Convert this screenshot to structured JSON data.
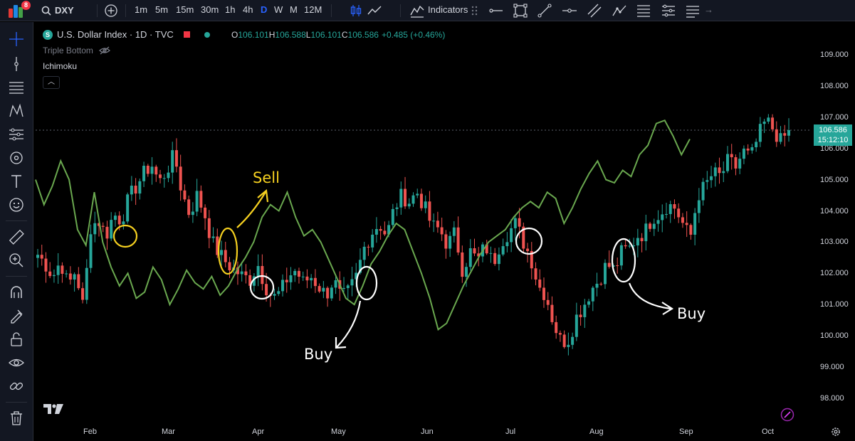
{
  "toolbar": {
    "notification_count": "8",
    "symbol": "DXY",
    "timeframes": [
      "1m",
      "5m",
      "15m",
      "30m",
      "1h",
      "4h",
      "D",
      "W",
      "M",
      "12M"
    ],
    "active_timeframe": "D",
    "indicators_label": "Indicators",
    "accent_color": "#2962ff"
  },
  "legend": {
    "symbol_badge": "S",
    "title": "U.S. Dollar Index · 1D · TVC",
    "ohlc": {
      "o_label": "O",
      "o_value": "106.101",
      "h_label": "H",
      "h_value": "106.588",
      "l_label": "L",
      "l_value": "106.101",
      "c_label": "C",
      "c_value": "106.586",
      "change": "+0.485 (+0.46%)"
    },
    "indicator_1": "Triple Bottom",
    "indicator_2": "Ichimoku",
    "collapse_icon": "chevron-up-icon"
  },
  "price_tag": {
    "price": "106.586",
    "countdown": "15:12:10",
    "color": "#26a69a"
  },
  "annotations": {
    "sell_label": "Sell",
    "buy_label_1": "Buy",
    "buy_label_2": "Buy",
    "yellow": "#f5d020"
  },
  "chart_data": {
    "type": "candlestick",
    "y_ticks": [
      "109.000",
      "108.000",
      "107.000",
      "106.000",
      "105.000",
      "104.000",
      "103.000",
      "102.000",
      "101.000",
      "100.000",
      "99.000",
      "98.000"
    ],
    "x_ticks": [
      "Feb",
      "Mar",
      "Apr",
      "May",
      "Jun",
      "Jul",
      "Aug",
      "Sep",
      "Oct"
    ],
    "ylim": [
      97.5,
      109.5
    ],
    "last_price": 106.586,
    "up_color": "#26a69a",
    "down_color": "#ef5350",
    "line_color": "#6aa84f",
    "close_path": [
      102.6,
      102.3,
      101.9,
      102.4,
      101.6,
      102.1,
      100.9,
      103.5,
      103.7,
      103.2,
      103.9,
      103.7,
      104.4,
      104.8,
      105.2,
      105.5,
      104.9,
      105.3,
      105.8,
      104.6,
      103.9,
      104.5,
      103.9,
      103.0,
      102.6,
      102.3,
      102.1,
      101.9,
      101.8,
      102.3,
      101.6,
      101.2,
      101.4,
      101.9,
      102.1,
      101.7,
      101.9,
      101.6,
      101.3,
      101.8,
      101.2,
      101.4,
      101.9,
      102.8,
      103.3,
      103.6,
      103.2,
      104.1,
      104.5,
      104.3,
      104.6,
      104.1,
      103.5,
      103.4,
      102.9,
      103.3,
      102.1,
      102.7,
      102.4,
      102.9,
      102.3,
      103.0,
      103.3,
      103.6,
      103.0,
      102.5,
      101.6,
      101.3,
      100.4,
      99.8,
      99.9,
      100.6,
      101.0,
      101.5,
      101.8,
      102.3,
      102.1,
      102.7,
      102.8,
      103.2,
      103.3,
      103.8,
      103.9,
      104.2,
      104.1,
      103.6,
      103.1,
      104.5,
      104.8,
      105.2,
      105.1,
      105.6,
      105.4,
      105.9,
      105.7,
      106.4,
      106.9,
      106.6,
      106.2,
      106.586
    ],
    "line_y": [
      105.0,
      104.2,
      104.8,
      105.6,
      105.0,
      103.4,
      102.9,
      104.6,
      103.0,
      102.2,
      101.6,
      102.0,
      101.2,
      101.4,
      102.2,
      101.8,
      101.0,
      101.5,
      102.1,
      101.7,
      101.5,
      101.9,
      101.3,
      101.6,
      102.1,
      102.5,
      103.0,
      103.8,
      104.2,
      104.0,
      104.6,
      103.8,
      103.2,
      103.4,
      103.0,
      102.4,
      101.8,
      101.2,
      101.0,
      101.6,
      102.3,
      102.7,
      103.2,
      103.6,
      103.4,
      102.7,
      102.0,
      101.2,
      100.2,
      100.4,
      101.0,
      101.6,
      102.1,
      102.6,
      103.0,
      103.2,
      103.4,
      103.8,
      104.1,
      104.3,
      104.1,
      104.6,
      104.4,
      103.6,
      104.1,
      104.7,
      105.2,
      105.6,
      105.0,
      104.9,
      105.3,
      105.1,
      105.8,
      106.1,
      106.8,
      106.9,
      106.4,
      105.8,
      106.3
    ]
  }
}
